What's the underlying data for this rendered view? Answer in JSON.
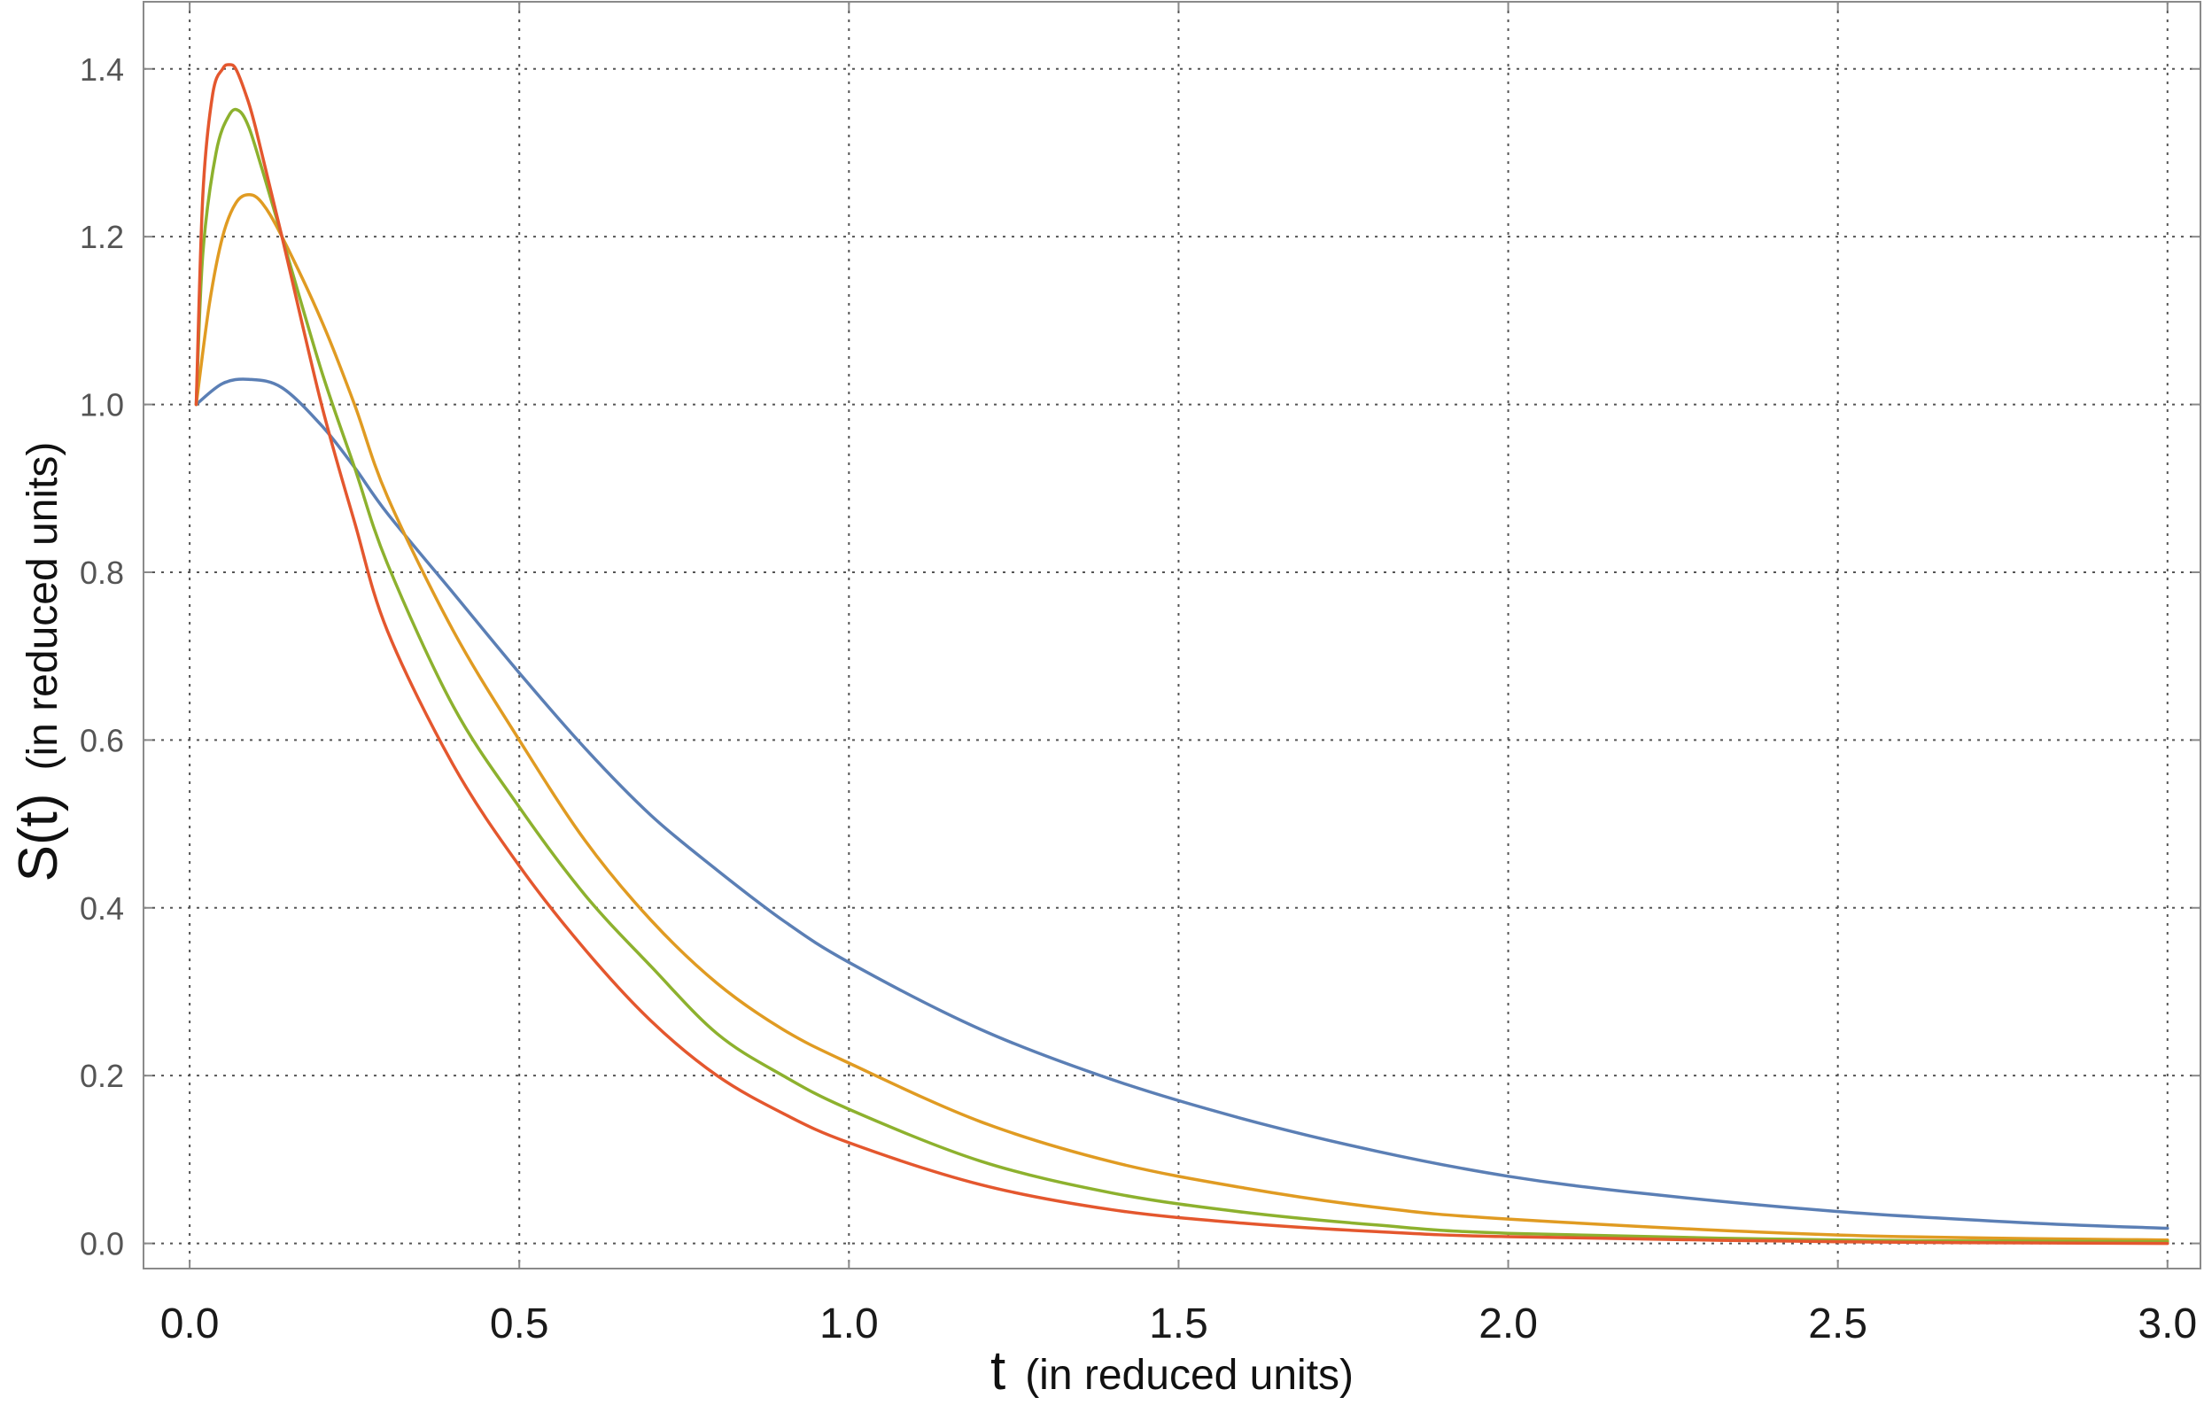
{
  "chart_data": {
    "type": "line",
    "title": "",
    "xlabel_main": "t",
    "xlabel_sub": "(in reduced units)",
    "ylabel_main": "S(t)",
    "ylabel_sub": "(in reduced units)",
    "xlim": [
      -0.07,
      3.05
    ],
    "ylim": [
      -0.03,
      1.48
    ],
    "x_ticks": [
      0.0,
      0.5,
      1.0,
      1.5,
      2.0,
      2.5,
      3.0
    ],
    "x_tick_labels": [
      "0.0",
      "0.5",
      "1.0",
      "1.5",
      "2.0",
      "2.5",
      "3.0"
    ],
    "y_ticks": [
      0.0,
      0.2,
      0.4,
      0.6,
      0.8,
      1.0,
      1.2,
      1.4
    ],
    "y_tick_labels": [
      "0.0",
      "0.2",
      "0.4",
      "0.6",
      "0.8",
      "1.0",
      "1.2",
      "1.4"
    ],
    "grid": true,
    "legend": "none",
    "series": [
      {
        "color": "#5b7fb5",
        "x": [
          0.01,
          0.05,
          0.09,
          0.14,
          0.2,
          0.25,
          0.3,
          0.4,
          0.5,
          0.6,
          0.7,
          0.8,
          0.9,
          1.0,
          1.2,
          1.4,
          1.6,
          1.8,
          2.0,
          2.2,
          2.5,
          2.8,
          3.0
        ],
        "y": [
          1.0,
          1.025,
          1.03,
          1.02,
          0.975,
          0.925,
          0.87,
          0.775,
          0.68,
          0.59,
          0.51,
          0.445,
          0.385,
          0.335,
          0.255,
          0.195,
          0.148,
          0.11,
          0.08,
          0.06,
          0.038,
          0.024,
          0.018
        ]
      },
      {
        "color": "#e09b22",
        "x": [
          0.01,
          0.03,
          0.05,
          0.07,
          0.09,
          0.11,
          0.14,
          0.2,
          0.25,
          0.3,
          0.4,
          0.5,
          0.6,
          0.7,
          0.8,
          0.9,
          1.0,
          1.2,
          1.4,
          1.6,
          1.8,
          2.0,
          2.5,
          3.0
        ],
        "y": [
          1.0,
          1.12,
          1.2,
          1.24,
          1.25,
          1.24,
          1.2,
          1.1,
          1.0,
          0.89,
          0.73,
          0.6,
          0.48,
          0.385,
          0.31,
          0.255,
          0.215,
          0.145,
          0.097,
          0.066,
          0.043,
          0.029,
          0.01,
          0.004
        ]
      },
      {
        "color": "#8db12e",
        "x": [
          0.01,
          0.02,
          0.04,
          0.06,
          0.075,
          0.09,
          0.11,
          0.14,
          0.2,
          0.25,
          0.3,
          0.4,
          0.5,
          0.6,
          0.7,
          0.8,
          0.9,
          1.0,
          1.2,
          1.4,
          1.6,
          1.8,
          2.0,
          2.5,
          3.0
        ],
        "y": [
          1.0,
          1.18,
          1.3,
          1.345,
          1.35,
          1.33,
          1.28,
          1.2,
          1.04,
          0.925,
          0.81,
          0.64,
          0.52,
          0.415,
          0.33,
          0.25,
          0.2,
          0.16,
          0.098,
          0.06,
          0.037,
          0.022,
          0.012,
          0.004,
          0.002
        ]
      },
      {
        "color": "#e4572e",
        "x": [
          0.01,
          0.02,
          0.035,
          0.05,
          0.06,
          0.07,
          0.085,
          0.1,
          0.14,
          0.2,
          0.25,
          0.3,
          0.4,
          0.5,
          0.6,
          0.7,
          0.8,
          0.9,
          1.0,
          1.2,
          1.4,
          1.6,
          1.8,
          2.0,
          2.5,
          3.0
        ],
        "y": [
          1.0,
          1.25,
          1.37,
          1.4,
          1.405,
          1.4,
          1.37,
          1.33,
          1.2,
          1.0,
          0.86,
          0.73,
          0.57,
          0.45,
          0.35,
          0.265,
          0.2,
          0.155,
          0.12,
          0.07,
          0.04,
          0.024,
          0.014,
          0.008,
          0.002,
          0.0
        ]
      }
    ]
  }
}
